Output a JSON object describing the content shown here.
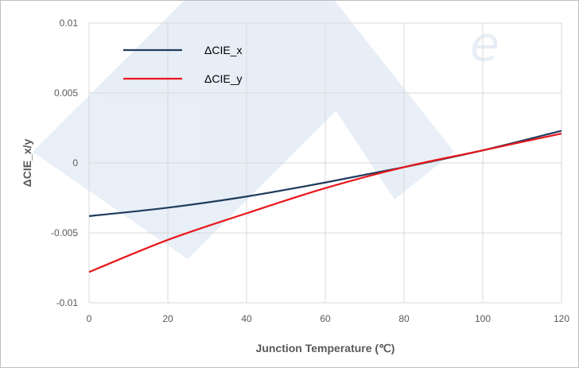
{
  "chart_data": {
    "type": "line",
    "title": "",
    "xlabel": "Junction Temperature (℃)",
    "ylabel": "ΔCIE_x/y",
    "xlim": [
      0,
      120
    ],
    "ylim": [
      -0.01,
      0.01
    ],
    "x_ticks": [
      "0",
      "20",
      "40",
      "60",
      "80",
      "100",
      "120"
    ],
    "y_ticks": [
      "-0.01",
      "-0.005",
      "0",
      "0.005",
      "0.01"
    ],
    "grid": true,
    "legend_position": "top-left",
    "series": [
      {
        "name": "ΔCIE_x",
        "color": "#1f3b5c",
        "x": [
          0,
          20,
          40,
          60,
          80,
          100,
          120
        ],
        "y": [
          -0.0038,
          -0.0032,
          -0.0024,
          -0.0014,
          -0.0003,
          0.0009,
          0.0023
        ]
      },
      {
        "name": "ΔCIE_y",
        "color": "#e8161b",
        "x": [
          0,
          20,
          40,
          60,
          80,
          100,
          120
        ],
        "y": [
          -0.0078,
          -0.0055,
          -0.0036,
          -0.0018,
          -0.0003,
          0.0009,
          0.0021
        ]
      }
    ]
  }
}
